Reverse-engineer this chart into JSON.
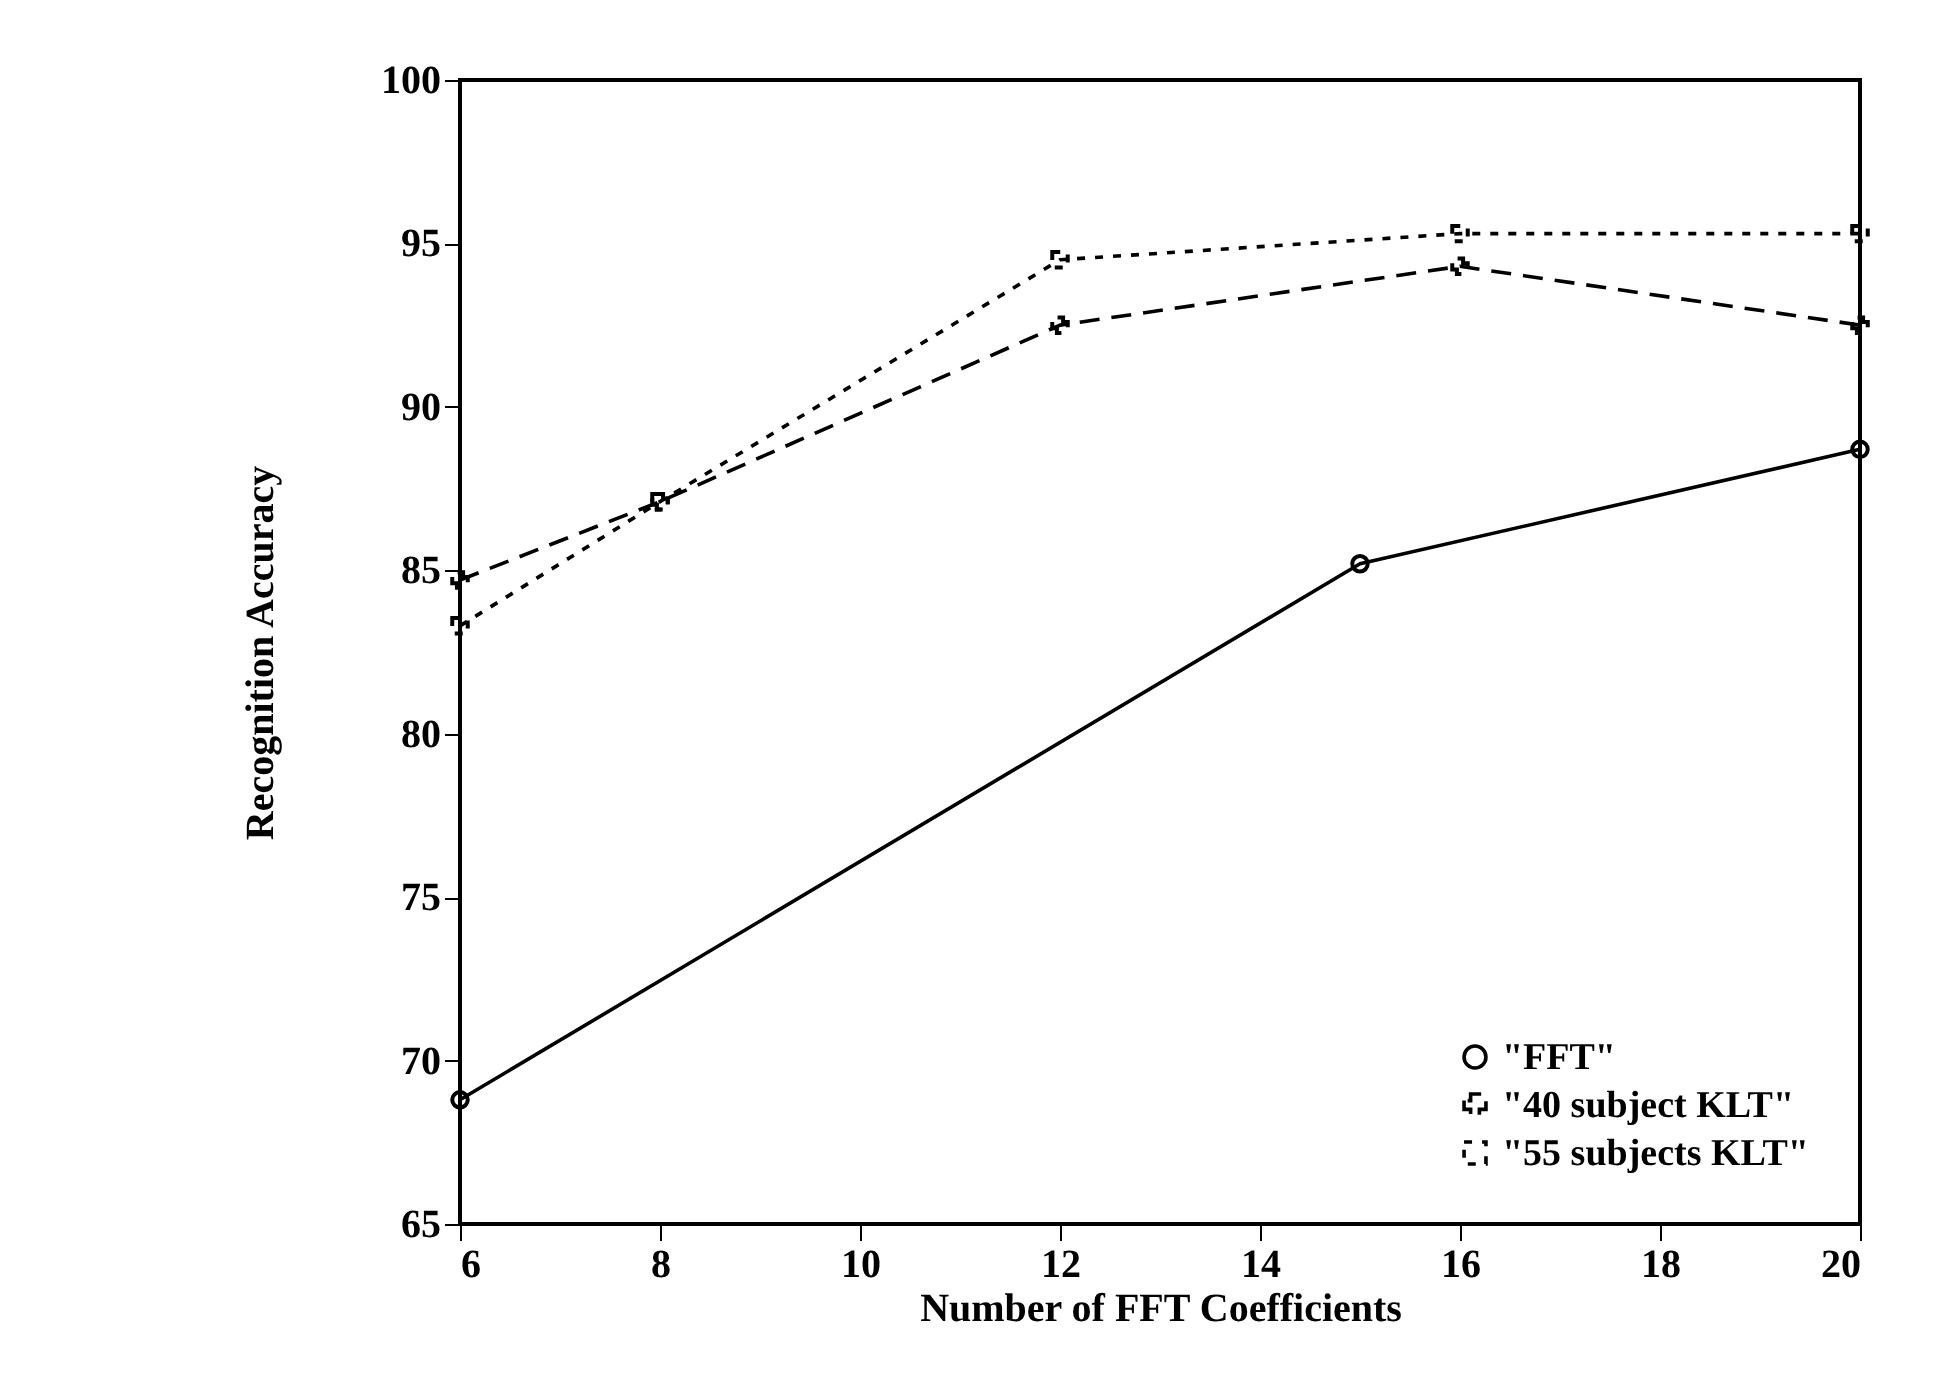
{
  "chart_data": {
    "type": "line",
    "xlabel": "Number of FFT Coefficients",
    "ylabel": "Recognition Accuracy",
    "xlim": [
      6,
      20
    ],
    "xticks": [
      6,
      8,
      10,
      12,
      14,
      16,
      18,
      20
    ],
    "ylim": [
      65,
      100
    ],
    "yticks": [
      65,
      70,
      75,
      80,
      85,
      90,
      95,
      100
    ],
    "grid": false,
    "legend": "bottom right",
    "series": [
      {
        "name": "\"FFT\"",
        "color": "#000000",
        "x": [
          6,
          15,
          20
        ],
        "values": [
          68.8,
          85.2,
          88.7
        ],
        "marker": "circle",
        "line_style": "solid"
      },
      {
        "name": "\"40 subject KLT\"",
        "color": "#000000",
        "x": [
          6,
          8,
          12,
          16,
          20
        ],
        "values": [
          84.7,
          87.1,
          92.5,
          94.3,
          92.5
        ],
        "marker": "cross",
        "line_style": "dashed"
      },
      {
        "name": "\"55 subjects KLT\"",
        "color": "#000000",
        "x": [
          6,
          8,
          12,
          16,
          20
        ],
        "values": [
          83.3,
          87.1,
          94.5,
          95.3,
          95.3
        ],
        "marker": "square",
        "line_style": "dotted"
      }
    ]
  }
}
